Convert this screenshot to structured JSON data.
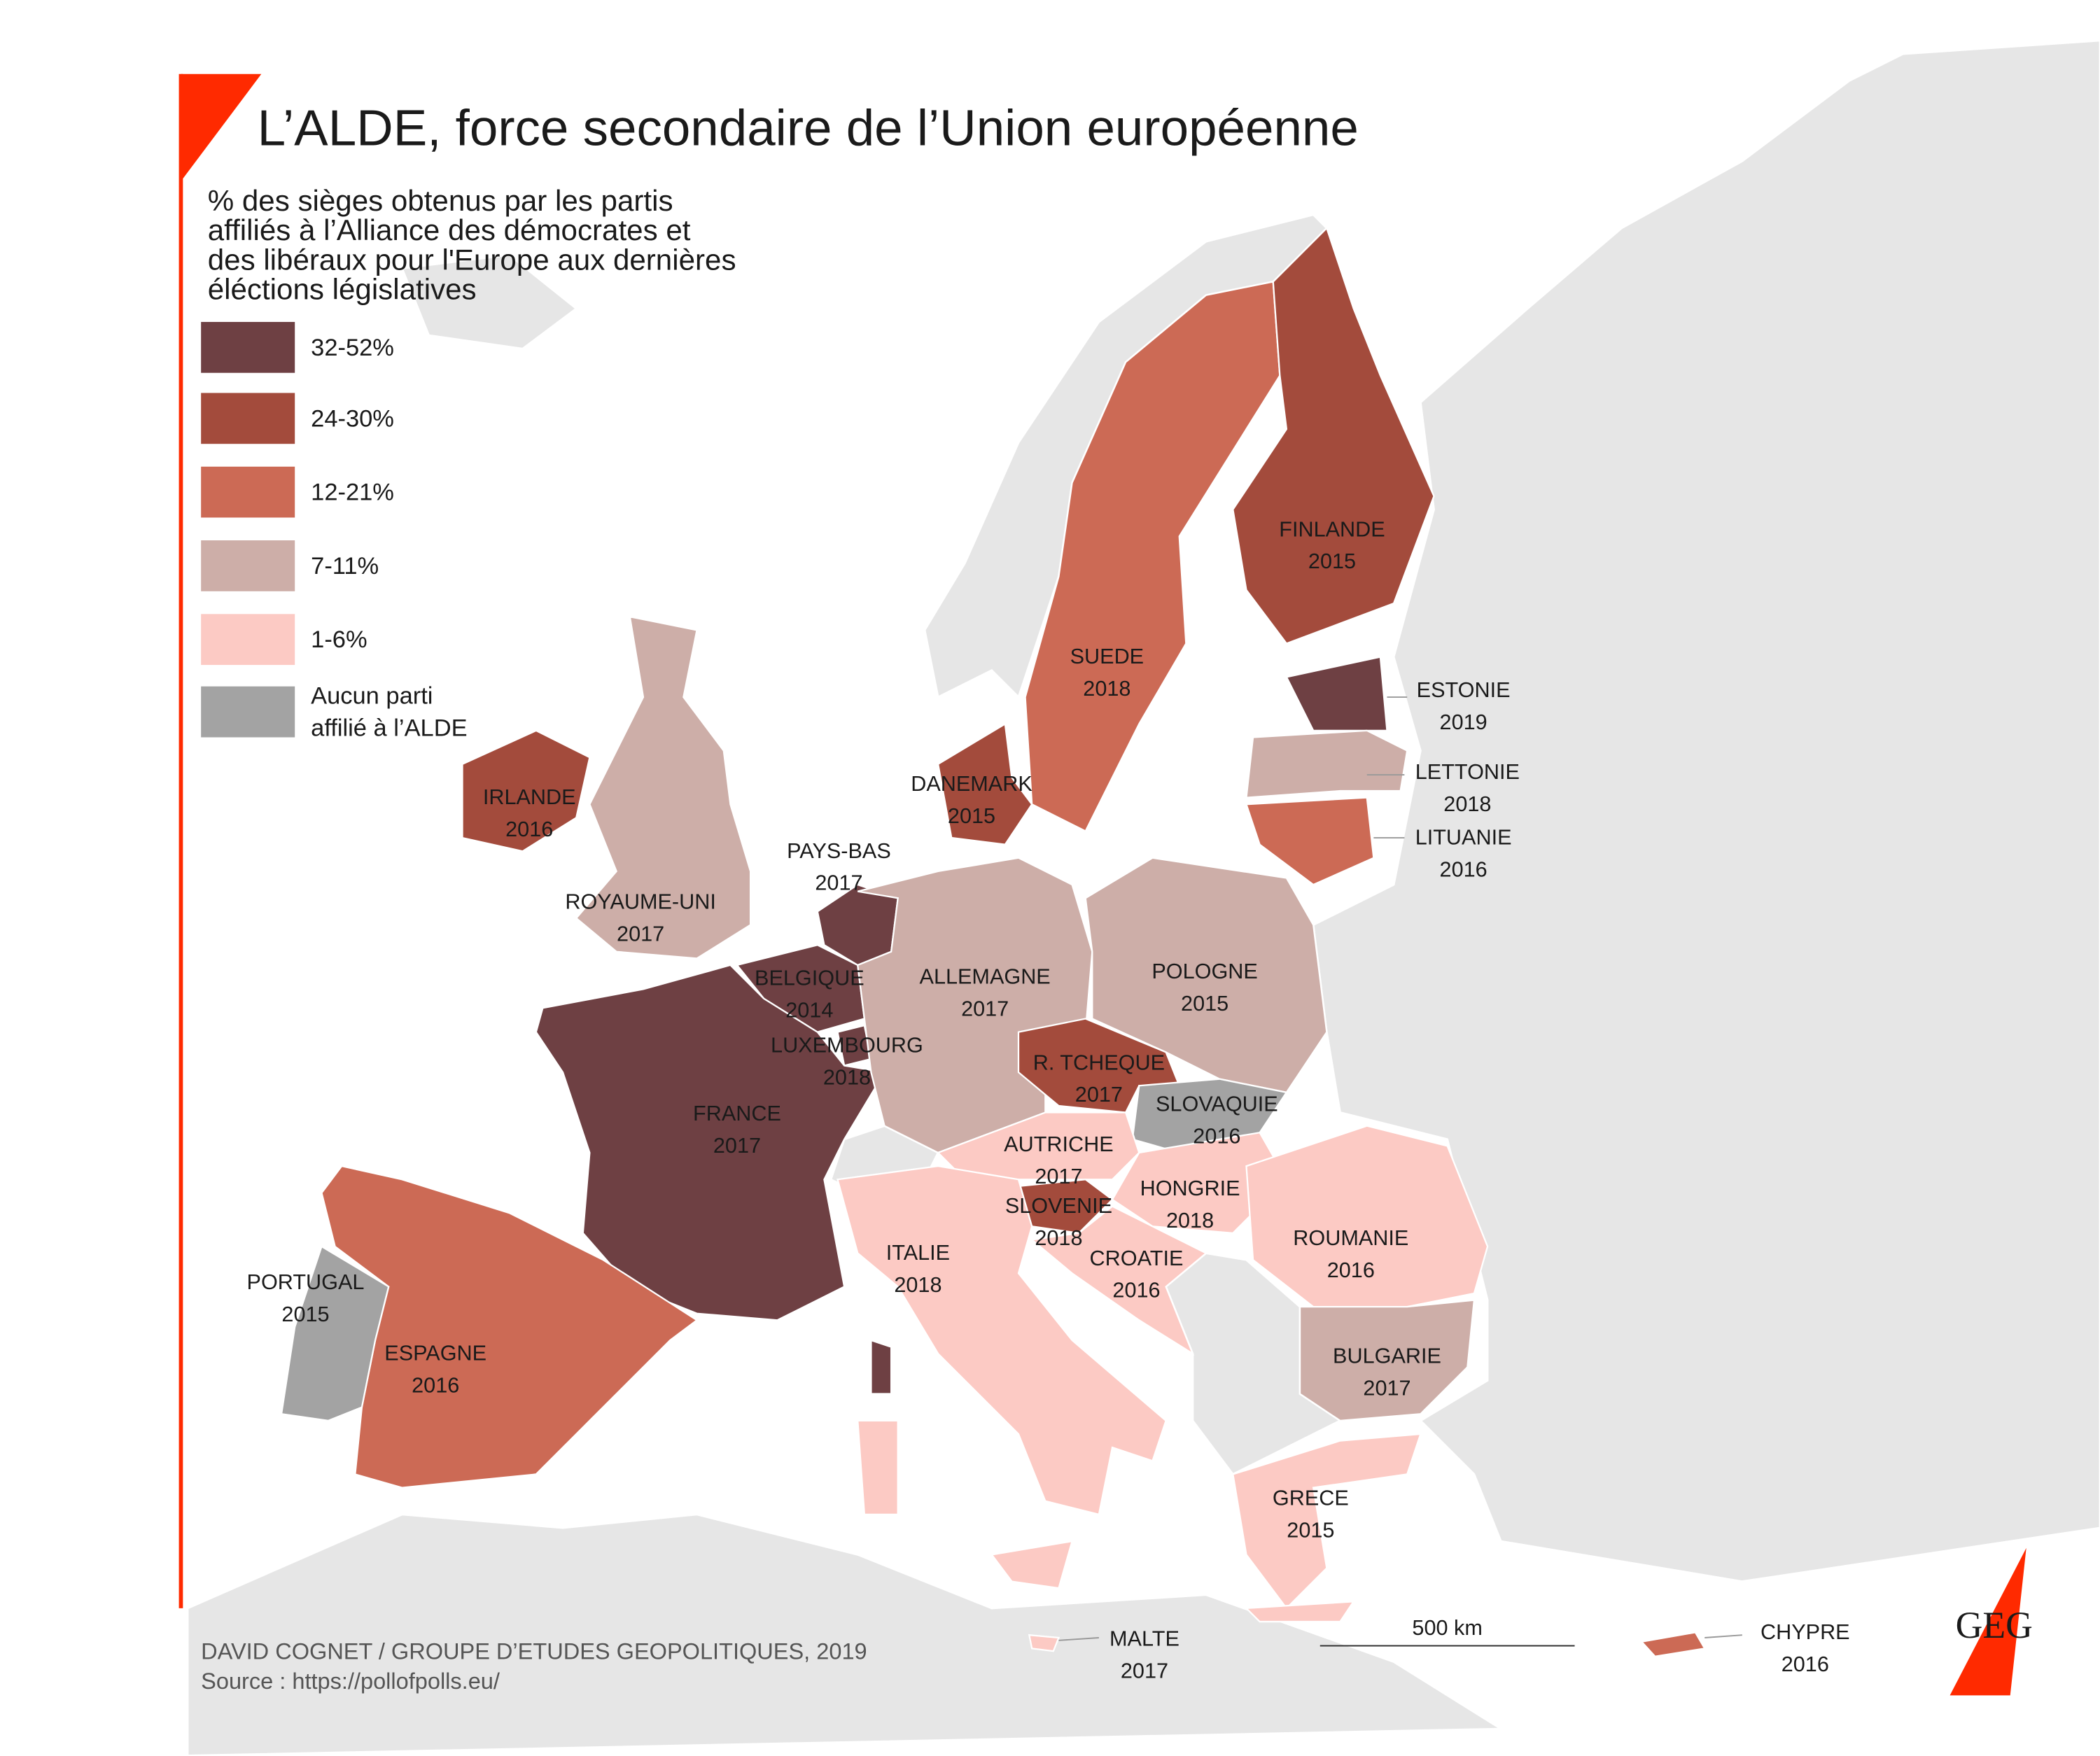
{
  "header": {
    "title": "L’ALDE, force secondaire de l’Union européenne",
    "subtitle_lines": [
      "% des sièges obtenus par les partis",
      "affiliés à l’Alliance des démocrates et",
      "des libéraux pour l'Europe aux dernières",
      "éléctions législatives"
    ]
  },
  "legend": [
    {
      "label_lines": [
        "32-52%"
      ],
      "color": "#6e4043"
    },
    {
      "label_lines": [
        "24-30%"
      ],
      "color": "#a34b3c"
    },
    {
      "label_lines": [
        "12-21%"
      ],
      "color": "#cc6a55"
    },
    {
      "label_lines": [
        "7-11%"
      ],
      "color": "#cdaea8"
    },
    {
      "label_lines": [
        "1-6%"
      ],
      "color": "#fccac4"
    },
    {
      "label_lines": [
        "Aucun parti",
        "affilié à l’ALDE"
      ],
      "color": "#a3a3a3"
    }
  ],
  "countries": [
    {
      "name": "IRLANDE",
      "year": "2016",
      "category": 1
    },
    {
      "name": "ROYAUME-UNI",
      "year": "2017",
      "category": 3
    },
    {
      "name": "PAYS-BAS",
      "year": "2017",
      "category": 0
    },
    {
      "name": "BELGIQUE",
      "year": "2014",
      "category": 0
    },
    {
      "name": "LUXEMBOURG",
      "year": "2018",
      "category": 0
    },
    {
      "name": "FRANCE",
      "year": "2017",
      "category": 0
    },
    {
      "name": "ESPAGNE",
      "year": "2016",
      "category": 2
    },
    {
      "name": "PORTUGAL",
      "year": "2015",
      "category": 5
    },
    {
      "name": "ALLEMAGNE",
      "year": "2017",
      "category": 3
    },
    {
      "name": "DANEMARK",
      "year": "2015",
      "category": 1
    },
    {
      "name": "SUEDE",
      "year": "2018",
      "category": 2
    },
    {
      "name": "FINLANDE",
      "year": "2015",
      "category": 1
    },
    {
      "name": "ESTONIE",
      "year": "2019",
      "category": 0
    },
    {
      "name": "LETTONIE",
      "year": "2018",
      "category": 3
    },
    {
      "name": "LITUANIE",
      "year": "2016",
      "category": 2
    },
    {
      "name": "POLOGNE",
      "year": "2015",
      "category": 3
    },
    {
      "name": "R. TCHEQUE",
      "year": "2017",
      "category": 1
    },
    {
      "name": "SLOVAQUIE",
      "year": "2016",
      "category": 5
    },
    {
      "name": "AUTRICHE",
      "year": "2017",
      "category": 4
    },
    {
      "name": "SLOVENIE",
      "year": "2018",
      "category": 1
    },
    {
      "name": "HONGRIE",
      "year": "2018",
      "category": 4
    },
    {
      "name": "CROATIE",
      "year": "2016",
      "category": 4
    },
    {
      "name": "ROUMANIE",
      "year": "2016",
      "category": 4
    },
    {
      "name": "BULGARIE",
      "year": "2017",
      "category": 3
    },
    {
      "name": "ITALIE",
      "year": "2018",
      "category": 4
    },
    {
      "name": "GRECE",
      "year": "2015",
      "category": 4
    },
    {
      "name": "MALTE",
      "year": "2017",
      "category": 4
    },
    {
      "name": "CHYPRE",
      "year": "2016",
      "category": 2
    }
  ],
  "scale_label": "500 km",
  "credit": "DAVID COGNET / GROUPE D’ETUDES GEOPOLITIQUES, 2019",
  "source": "Source : https://pollofpolls.eu/",
  "logo": "GEG"
}
